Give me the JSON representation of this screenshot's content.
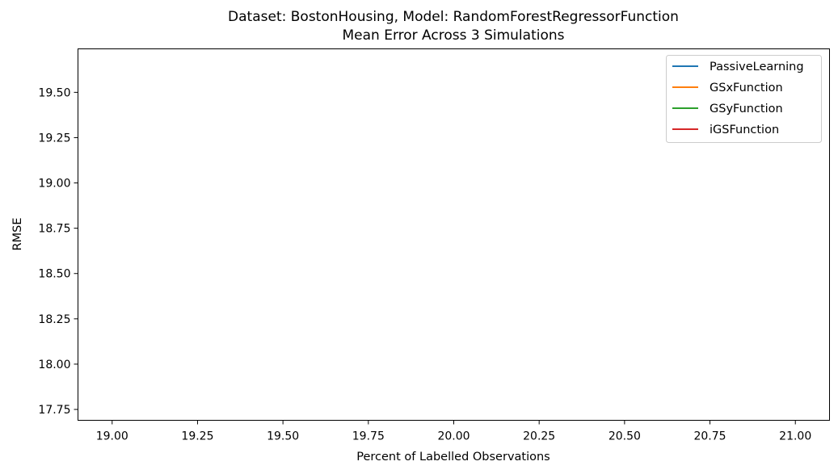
{
  "chart_data": {
    "type": "line",
    "title": "Dataset: BostonHousing, Model: RandomForestRegressorFunction",
    "subtitle": "Mean Error Across 3 Simulations",
    "xlabel": "Percent of Labelled Observations",
    "ylabel": "RMSE",
    "xlim": [
      18.9,
      21.1
    ],
    "ylim": [
      17.69,
      19.74
    ],
    "xticks": [
      19.0,
      19.25,
      19.5,
      19.75,
      20.0,
      20.25,
      20.5,
      20.75,
      21.0
    ],
    "xtick_labels": [
      "19.00",
      "19.25",
      "19.50",
      "19.75",
      "20.00",
      "20.25",
      "20.50",
      "20.75",
      "21.00"
    ],
    "yticks": [
      17.75,
      18.0,
      18.25,
      18.5,
      18.75,
      19.0,
      19.25,
      19.5
    ],
    "ytick_labels": [
      "17.75",
      "18.00",
      "18.25",
      "18.50",
      "18.75",
      "19.00",
      "19.25",
      "19.50"
    ],
    "grid": false,
    "legend_position": "top-right",
    "series": [
      {
        "name": "PassiveLearning",
        "color": "#1f77b4",
        "x": [],
        "y": []
      },
      {
        "name": "GSxFunction",
        "color": "#ff7f0e",
        "x": [],
        "y": []
      },
      {
        "name": "GSyFunction",
        "color": "#2ca02c",
        "x": [],
        "y": []
      },
      {
        "name": "iGSFunction",
        "color": "#d62728",
        "x": [],
        "y": []
      }
    ]
  }
}
